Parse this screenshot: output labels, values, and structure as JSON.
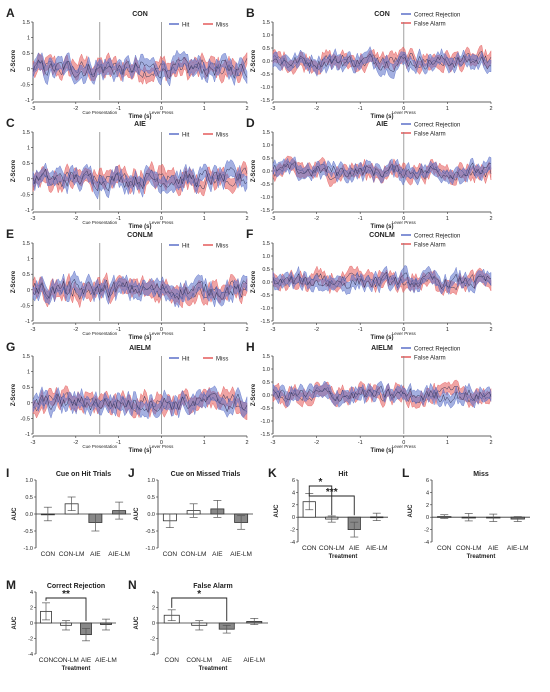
{
  "colors": {
    "hit": "#5a6fc8",
    "miss": "#e45a5a",
    "bar": "#ffffff",
    "bar_dark": "#888888",
    "text": "#222222"
  },
  "traces": [
    {
      "letter": "A",
      "title": "CON",
      "x_title": "Time (s)",
      "y_title": "Z-Score",
      "yticks": [
        "1.5",
        "1",
        "0.5",
        "0",
        "-0.5",
        "-1"
      ],
      "xticks": [
        "-3",
        "-2",
        "-1",
        "0",
        "1",
        "2"
      ],
      "event_labels": [
        "Cue Presentation",
        "Lever Press"
      ],
      "legend": [
        "Hit",
        "Miss"
      ],
      "legend_style": "pair"
    },
    {
      "letter": "B",
      "title": "CON",
      "x_title": "Time (s)",
      "y_title": "Z-Score",
      "yticks": [
        "1.5",
        "1.0",
        "0.5",
        "0.0",
        "-0.5",
        "-1.0",
        "-1.5"
      ],
      "xticks": [
        "-3",
        "-2",
        "-1",
        "0",
        "1",
        "2"
      ],
      "event_labels": [
        "Lever Press"
      ],
      "legend": [
        "Correct Rejection",
        "False Alarm"
      ],
      "legend_style": "stack"
    },
    {
      "letter": "C",
      "title": "AIE",
      "x_title": "Time (s)",
      "y_title": "Z-Score",
      "yticks": [
        "1.5",
        "1",
        "0.5",
        "0",
        "-0.5",
        "-1"
      ],
      "xticks": [
        "-3",
        "-2",
        "-1",
        "0",
        "1",
        "2"
      ],
      "event_labels": [
        "Cue Presentation",
        "Lever Press"
      ],
      "legend": [
        "Hit",
        "Miss"
      ],
      "legend_style": "pair"
    },
    {
      "letter": "D",
      "title": "AIE",
      "x_title": "Time (s)",
      "y_title": "Z-Score",
      "yticks": [
        "1.5",
        "1.0",
        "0.5",
        "0.0",
        "-0.5",
        "-1.0",
        "-1.5"
      ],
      "xticks": [
        "-3",
        "-2",
        "-1",
        "0",
        "1",
        "2"
      ],
      "event_labels": [
        "Lever Press"
      ],
      "legend": [
        "Correct Rejection",
        "False Alarm"
      ],
      "legend_style": "stack"
    },
    {
      "letter": "E",
      "title": "CONLM",
      "x_title": "Time (s)",
      "y_title": "Z-Score",
      "yticks": [
        "1.5",
        "1",
        "0.5",
        "0",
        "-0.5",
        "-1"
      ],
      "xticks": [
        "-3",
        "-2",
        "-1",
        "0",
        "1",
        "2"
      ],
      "event_labels": [
        "Cue Presentation",
        "Lever Press"
      ],
      "legend": [
        "Hit",
        "Miss"
      ],
      "legend_style": "pair"
    },
    {
      "letter": "F",
      "title": "CONLM",
      "x_title": "Time (s)",
      "y_title": "Z-Score",
      "yticks": [
        "1.5",
        "1.0",
        "0.5",
        "0.0",
        "-0.5",
        "-1.0",
        "-1.5"
      ],
      "xticks": [
        "-3",
        "-2",
        "-1",
        "0",
        "1",
        "2"
      ],
      "event_labels": [
        "Lever Press"
      ],
      "legend": [
        "Correct Rejection",
        "False Alarm"
      ],
      "legend_style": "stack"
    },
    {
      "letter": "G",
      "title": "AIELM",
      "x_title": "Time (s)",
      "y_title": "Z-Score",
      "yticks": [
        "1.5",
        "1",
        "0.5",
        "0",
        "-0.5",
        "-1"
      ],
      "xticks": [
        "-3",
        "-2",
        "-1",
        "0",
        "1",
        "2"
      ],
      "event_labels": [
        "Cue Presentation",
        "Lever Press"
      ],
      "legend": [
        "Hit",
        "Miss"
      ],
      "legend_style": "pair"
    },
    {
      "letter": "H",
      "title": "AIELM",
      "x_title": "Time (s)",
      "y_title": "Z-Score",
      "yticks": [
        "1.5",
        "1.0",
        "0.5",
        "0.0",
        "-0.5",
        "-1.0",
        "-1.5"
      ],
      "xticks": [
        "-3",
        "-2",
        "-1",
        "0",
        "1",
        "2"
      ],
      "event_labels": [
        "Lever Press"
      ],
      "legend": [
        "Correct Rejection",
        "False Alarm"
      ],
      "legend_style": "stack"
    }
  ],
  "chart_data": [
    {
      "type": "bar",
      "letter": "I",
      "title": "Cue on Hit Trials",
      "ylabel": "AUC",
      "xlabel": "",
      "categories": [
        "CON",
        "CON-LM",
        "AIE",
        "AIE-LM"
      ],
      "values": [
        0.0,
        0.3,
        -0.25,
        0.1
      ],
      "errors": [
        0.2,
        0.2,
        0.25,
        0.25
      ],
      "ylim": [
        -1.0,
        1.0
      ],
      "yticks": [
        "1.0",
        "0.5",
        "0.0",
        "-0.5",
        "-1.0"
      ],
      "grey": [
        false,
        false,
        true,
        true
      ],
      "sig": []
    },
    {
      "type": "bar",
      "letter": "J",
      "title": "Cue on Missed Trials",
      "ylabel": "AUC",
      "xlabel": "",
      "categories": [
        "CON",
        "CON-LM",
        "AIE",
        "AIE-LM"
      ],
      "values": [
        -0.2,
        0.1,
        0.15,
        -0.25
      ],
      "errors": [
        0.2,
        0.2,
        0.25,
        0.2
      ],
      "ylim": [
        -1.0,
        1.0
      ],
      "yticks": [
        "1.0",
        "0.5",
        "0.0",
        "-0.5",
        "-1.0"
      ],
      "grey": [
        false,
        false,
        true,
        true
      ],
      "sig": []
    },
    {
      "type": "bar",
      "letter": "K",
      "title": "Hit",
      "ylabel": "AUC",
      "xlabel": "Treatment",
      "categories": [
        "CON",
        "CON-LM",
        "AIE",
        "AIE-LM"
      ],
      "values": [
        2.5,
        -0.3,
        -2.0,
        0.05
      ],
      "errors": [
        1.3,
        0.5,
        1.2,
        0.6
      ],
      "ylim": [
        -4,
        6
      ],
      "yticks": [
        "6",
        "4",
        "2",
        "0",
        "-2",
        "-4"
      ],
      "grey": [
        false,
        false,
        true,
        true
      ],
      "sig": [
        {
          "from": 0,
          "to": 1,
          "label": "*"
        },
        {
          "from": 0,
          "to": 2,
          "label": "***"
        }
      ]
    },
    {
      "type": "bar",
      "letter": "L",
      "title": "Miss",
      "ylabel": "AUC",
      "xlabel": "Treatment",
      "categories": [
        "CON",
        "CON-LM",
        "AIE",
        "AIE-LM"
      ],
      "values": [
        0.1,
        0.0,
        -0.1,
        -0.3
      ],
      "errors": [
        0.3,
        0.6,
        0.6,
        0.4
      ],
      "ylim": [
        -4,
        6
      ],
      "yticks": [
        "6",
        "4",
        "2",
        "0",
        "-2",
        "-4"
      ],
      "grey": [
        false,
        false,
        true,
        true
      ],
      "sig": []
    },
    {
      "type": "bar",
      "letter": "M",
      "title": "Correct Rejection",
      "ylabel": "AUC",
      "xlabel": "Treatment",
      "categories": [
        "CON",
        "CON-LM",
        "AIE",
        "AIE-LM"
      ],
      "values": [
        1.5,
        -0.3,
        -1.5,
        -0.2
      ],
      "errors": [
        1.1,
        0.6,
        0.8,
        0.7
      ],
      "ylim": [
        -4,
        4
      ],
      "yticks": [
        "4",
        "2",
        "0",
        "-2",
        "-4"
      ],
      "grey": [
        false,
        false,
        true,
        true
      ],
      "sig": [
        {
          "from": 0,
          "to": 2,
          "label": "**"
        }
      ]
    },
    {
      "type": "bar",
      "letter": "N",
      "title": "False Alarm",
      "ylabel": "AUC",
      "xlabel": "Treatment",
      "categories": [
        "CON",
        "CON-LM",
        "AIE",
        "AIE-LM"
      ],
      "values": [
        1.0,
        -0.3,
        -0.8,
        0.2
      ],
      "errors": [
        0.7,
        0.6,
        0.5,
        0.4
      ],
      "ylim": [
        -4,
        4
      ],
      "yticks": [
        "4",
        "2",
        "0",
        "-2",
        "-4"
      ],
      "grey": [
        false,
        false,
        true,
        true
      ],
      "sig": [
        {
          "from": 0,
          "to": 2,
          "label": "*"
        }
      ]
    }
  ]
}
